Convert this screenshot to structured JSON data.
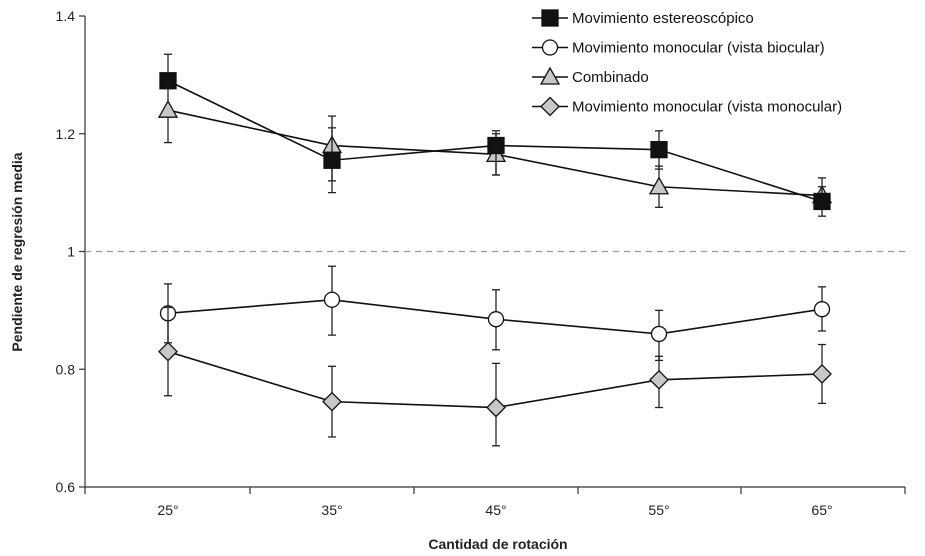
{
  "chart_data": {
    "type": "line",
    "xlabel": "Cantidad de rotación",
    "ylabel": "Pendiente de regresión media",
    "categories": [
      "25°",
      "35°",
      "45°",
      "55°",
      "65°"
    ],
    "ylim": [
      0.6,
      1.4
    ],
    "yticks": [
      "0.6",
      "0.8",
      "1",
      "1.2",
      "1.4"
    ],
    "reference_line": {
      "y": 1,
      "style": "dashed"
    },
    "grid": false,
    "legend_position": "top-right",
    "series": [
      {
        "name": "Movimiento estereoscópico",
        "marker": "square",
        "fill": "#111111",
        "values": [
          1.29,
          1.155,
          1.18,
          1.173,
          1.085
        ],
        "err_low": [
          1.285,
          1.1,
          1.13,
          1.14,
          1.06
        ],
        "err_high": [
          1.335,
          1.21,
          1.205,
          1.205,
          1.11
        ]
      },
      {
        "name": "Movimiento monocular (vista biocular)",
        "marker": "circle",
        "fill": "#ffffff",
        "values": [
          0.895,
          0.918,
          0.885,
          0.86,
          0.902
        ],
        "err_low": [
          0.845,
          0.858,
          0.833,
          0.815,
          0.865
        ],
        "err_high": [
          0.945,
          0.975,
          0.935,
          0.9,
          0.94
        ]
      },
      {
        "name": "Combinado",
        "marker": "triangle",
        "fill": "#c8c8c8",
        "values": [
          1.24,
          1.18,
          1.165,
          1.11,
          1.095
        ],
        "err_low": [
          1.185,
          1.12,
          1.13,
          1.075,
          1.075
        ],
        "err_high": [
          1.295,
          1.23,
          1.2,
          1.145,
          1.125
        ]
      },
      {
        "name": "Movimiento monocular (vista monocular)",
        "marker": "diamond",
        "fill": "#c8c8c8",
        "values": [
          0.83,
          0.745,
          0.735,
          0.782,
          0.792
        ],
        "err_low": [
          0.755,
          0.685,
          0.67,
          0.735,
          0.742
        ],
        "err_high": [
          0.905,
          0.805,
          0.81,
          0.822,
          0.842
        ]
      }
    ]
  }
}
